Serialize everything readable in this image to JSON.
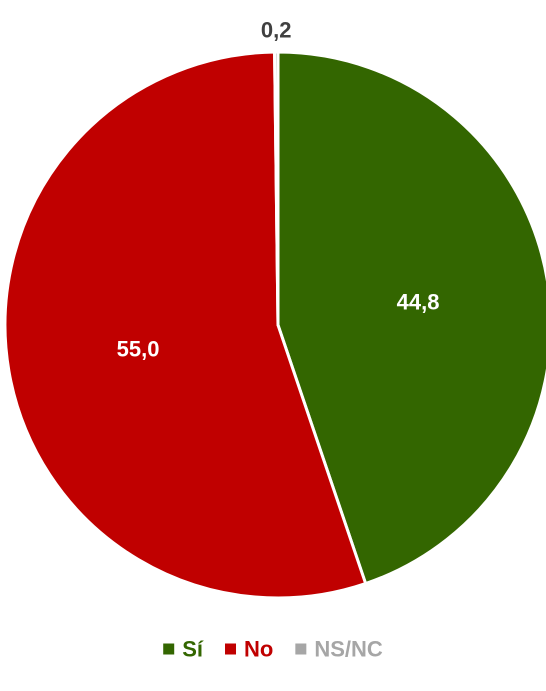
{
  "chart_data": {
    "type": "pie",
    "categories": [
      "Sí",
      "No",
      "NS/NC"
    ],
    "values": [
      44.8,
      55.0,
      0.2
    ],
    "labels": [
      "44,8",
      "55,0",
      "0,2"
    ],
    "colors": [
      "#336600",
      "#c00000",
      "#a6a6a6"
    ],
    "label_colors": [
      "#ffffff",
      "#ffffff",
      "#404040"
    ],
    "title": "",
    "legend_position": "bottom",
    "start": "top",
    "direction": "clockwise"
  },
  "legend": {
    "items": [
      {
        "label": "Sí",
        "color": "#336600"
      },
      {
        "label": "No",
        "color": "#c00000"
      },
      {
        "label": "NS/NC",
        "color": "#a6a6a6"
      }
    ]
  }
}
